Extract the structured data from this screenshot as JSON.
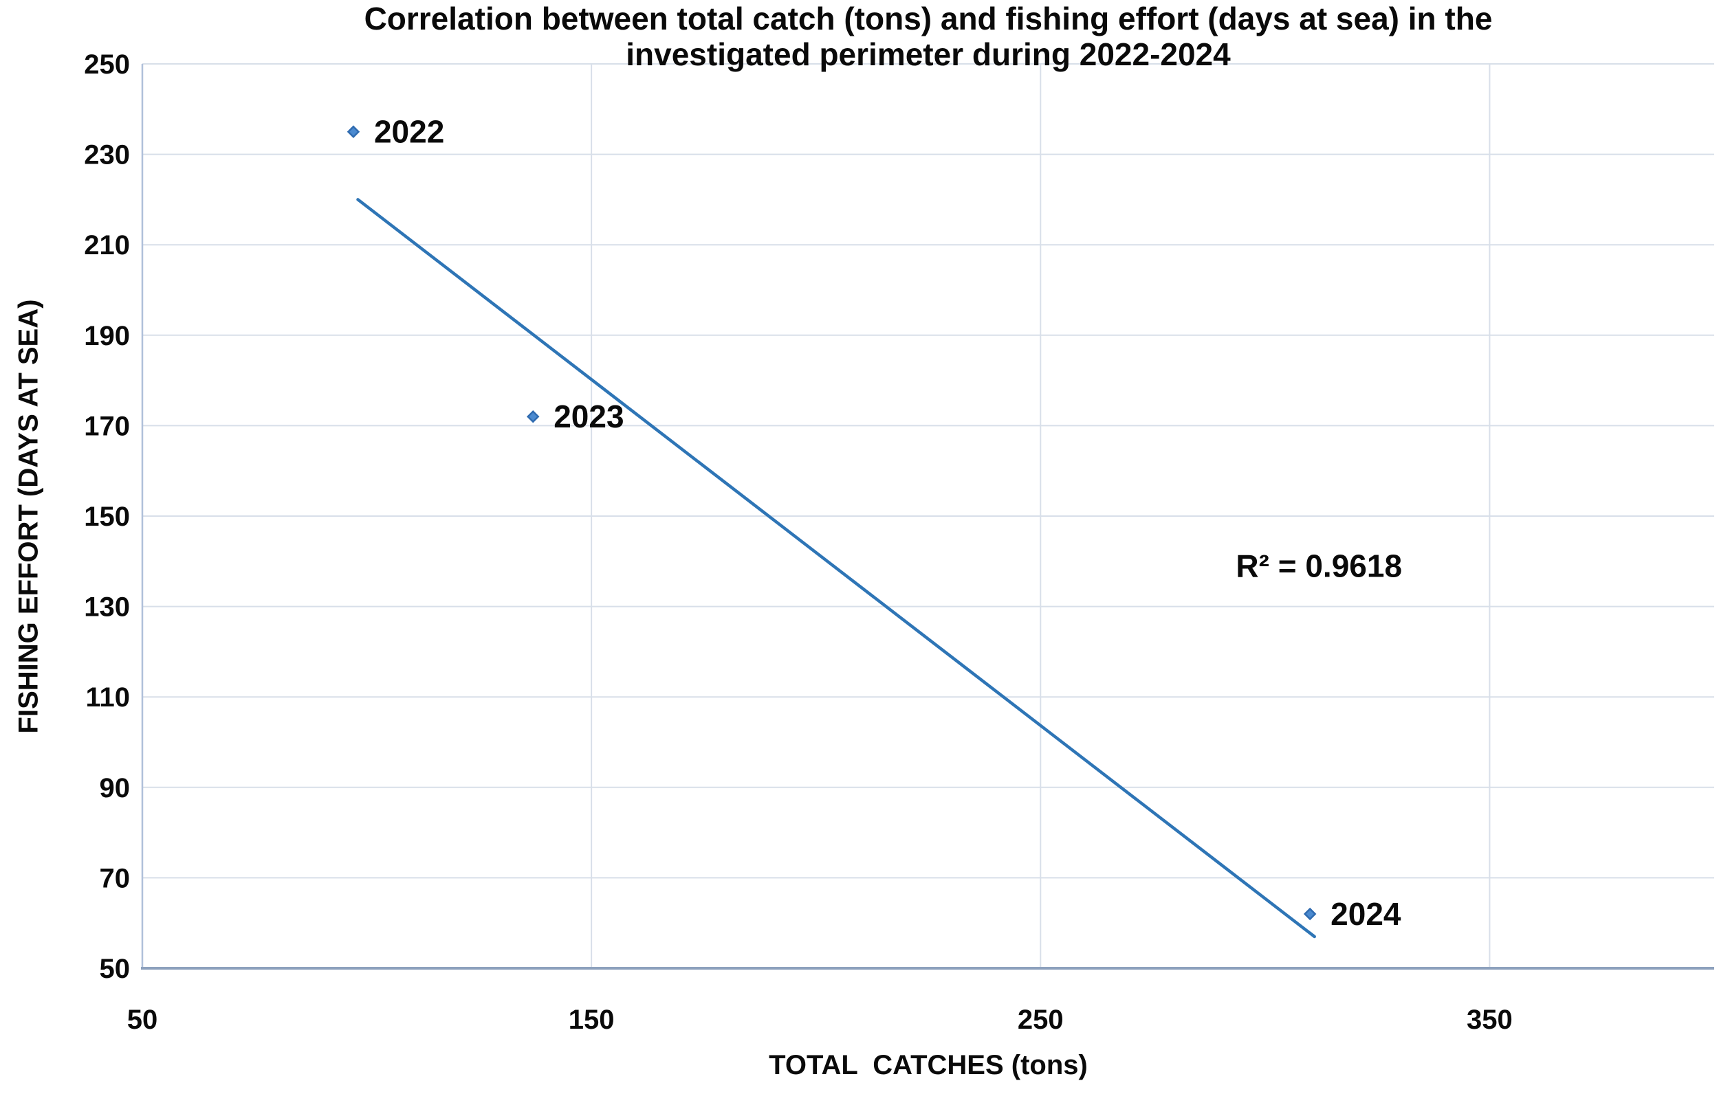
{
  "chart_data": {
    "type": "scatter",
    "title": "Correlation between total catch (tons) and fishing effort (days at sea) in the investigated perimeter during 2022-2024",
    "title_lines": [
      "Correlation between total catch (tons) and fishing effort (days at sea) in the",
      "investigated perimeter during 2022-2024"
    ],
    "xlabel": "TOTAL  CATCHES (tons)",
    "ylabel": "FISHING EFFORT (DAYS AT SEA)",
    "xlim": [
      50,
      400
    ],
    "ylim": [
      50,
      250
    ],
    "x_ticks": [
      50,
      150,
      250,
      350
    ],
    "y_ticks": [
      250,
      230,
      210,
      190,
      170,
      150,
      130,
      110,
      90,
      70,
      50
    ],
    "grid": true,
    "legend": "none",
    "points": [
      {
        "label": "2022",
        "x": 97,
        "y": 235
      },
      {
        "label": "2023",
        "x": 137,
        "y": 172
      },
      {
        "label": "2024",
        "x": 310,
        "y": 62
      }
    ],
    "trendline": {
      "x1": 98,
      "y1": 220,
      "x2": 311,
      "y2": 57
    },
    "annotation": {
      "text": "R² = 0.9618",
      "x": 312,
      "y": 139
    },
    "colors": {
      "marker_fill": "#4b8ad0",
      "marker_edge": "#2f6bb0",
      "trendline": "#2e75b6",
      "gridline": "#d8dfe9",
      "axis_left": "#b0c0da",
      "axis_bottom": "#8da1bd",
      "text": "#0a0a0a"
    }
  }
}
